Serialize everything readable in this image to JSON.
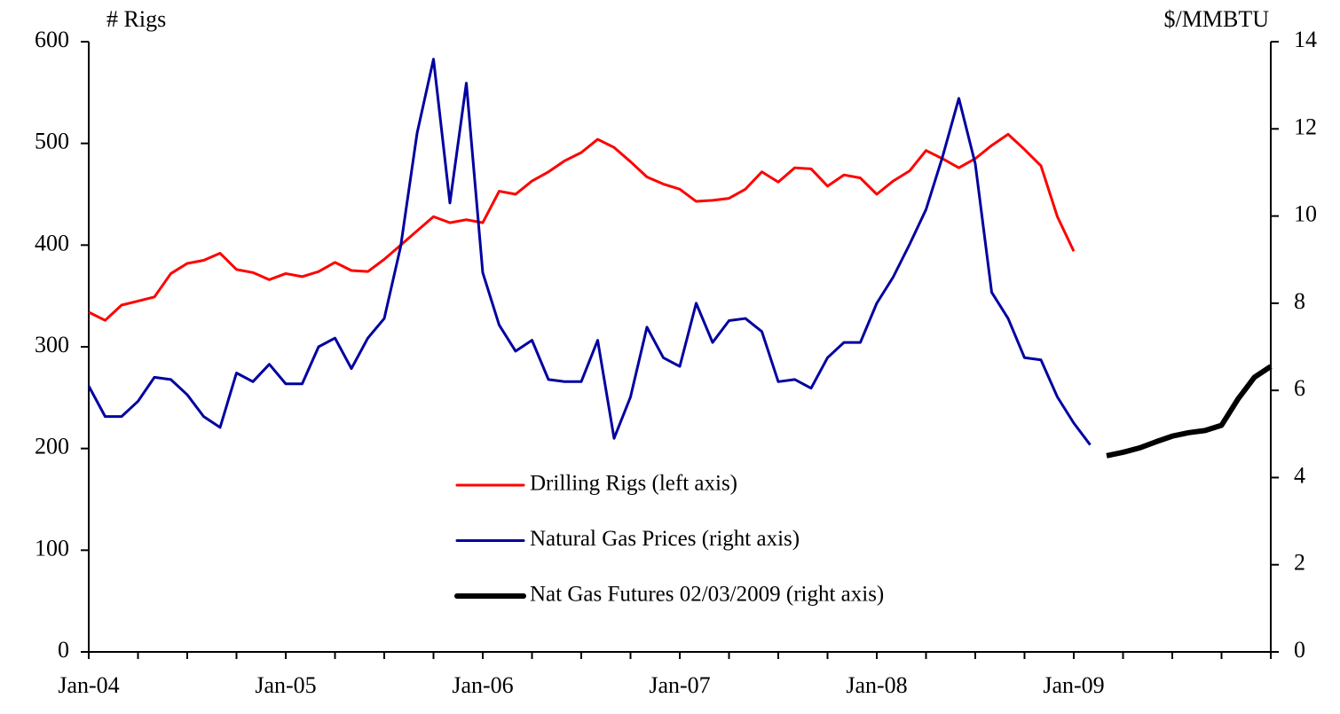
{
  "chart_data": {
    "type": "line",
    "ylabel": "# Rigs",
    "y2label": "$/MMBTU",
    "categories": [
      "Jan-04",
      null,
      null,
      null,
      null,
      null,
      null,
      null,
      null,
      null,
      null,
      null,
      "Jan-05",
      null,
      null,
      null,
      null,
      null,
      null,
      null,
      null,
      null,
      null,
      null,
      "Jan-06",
      null,
      null,
      null,
      null,
      null,
      null,
      null,
      null,
      null,
      null,
      null,
      "Jan-07",
      null,
      null,
      null,
      null,
      null,
      null,
      null,
      null,
      null,
      null,
      null,
      "Jan-08",
      null,
      null,
      null,
      null,
      null,
      null,
      null,
      null,
      null,
      null,
      null,
      "Jan-09",
      null,
      null,
      null,
      null,
      null,
      null,
      null,
      null,
      null,
      null,
      null,
      null
    ],
    "ylim": [
      0,
      600
    ],
    "yticks": [
      0,
      100,
      200,
      300,
      400,
      500,
      600
    ],
    "y2lim": [
      0,
      14
    ],
    "y2ticks": [
      0,
      2,
      4,
      6,
      8,
      10,
      12,
      14
    ],
    "series": [
      {
        "name": "Drilling Rigs (left axis)",
        "color": "#ff0000",
        "width": 3,
        "values": [
          334,
          326,
          341,
          345,
          349,
          372,
          382,
          385,
          392,
          376,
          373,
          366,
          372,
          369,
          374,
          383,
          375,
          374,
          386,
          400,
          414,
          428,
          422,
          425,
          422,
          453,
          450,
          463,
          472,
          483,
          491,
          504,
          496,
          482,
          467,
          460,
          455,
          443,
          444,
          446,
          455,
          472,
          462,
          476,
          475,
          458,
          469,
          466,
          450,
          463,
          473,
          493,
          485,
          476,
          485,
          498,
          509,
          494,
          478,
          428,
          394,
          null,
          null,
          null,
          null,
          null,
          null,
          null,
          null,
          null,
          null,
          null,
          null
        ]
      },
      {
        "name": "Natural Gas Prices (right axis)",
        "color": "#0000a0",
        "width": 3,
        "axis": "y2",
        "values": [
          6.1,
          5.4,
          5.4,
          5.75,
          6.3,
          6.25,
          5.9,
          5.4,
          5.15,
          6.4,
          6.2,
          6.6,
          6.15,
          6.15,
          7.0,
          7.2,
          6.5,
          7.2,
          7.65,
          9.3,
          11.9,
          13.6,
          10.3,
          13.05,
          8.7,
          7.5,
          6.9,
          7.15,
          6.25,
          6.2,
          6.2,
          7.15,
          4.9,
          5.85,
          7.45,
          6.75,
          6.55,
          8.0,
          7.1,
          7.6,
          7.65,
          7.35,
          6.2,
          6.25,
          6.05,
          6.75,
          7.1,
          7.1,
          8.0,
          8.6,
          9.35,
          10.15,
          11.35,
          12.7,
          11.2,
          8.25,
          7.65,
          6.75,
          6.7,
          5.85,
          5.25,
          4.75,
          null,
          null,
          null,
          null,
          null,
          null,
          null,
          null,
          null,
          null,
          null
        ]
      },
      {
        "name": "Nat Gas Futures 02/03/2009 (right axis)",
        "color": "#000000",
        "width": 6,
        "axis": "y2",
        "values": [
          null,
          null,
          null,
          null,
          null,
          null,
          null,
          null,
          null,
          null,
          null,
          null,
          null,
          null,
          null,
          null,
          null,
          null,
          null,
          null,
          null,
          null,
          null,
          null,
          null,
          null,
          null,
          null,
          null,
          null,
          null,
          null,
          null,
          null,
          null,
          null,
          null,
          null,
          null,
          null,
          null,
          null,
          null,
          null,
          null,
          null,
          null,
          null,
          null,
          null,
          null,
          null,
          null,
          null,
          null,
          null,
          null,
          null,
          null,
          null,
          null,
          null,
          4.5,
          4.58,
          4.68,
          4.82,
          4.95,
          5.03,
          5.08,
          5.2,
          5.8,
          6.3,
          6.55
        ]
      }
    ]
  }
}
